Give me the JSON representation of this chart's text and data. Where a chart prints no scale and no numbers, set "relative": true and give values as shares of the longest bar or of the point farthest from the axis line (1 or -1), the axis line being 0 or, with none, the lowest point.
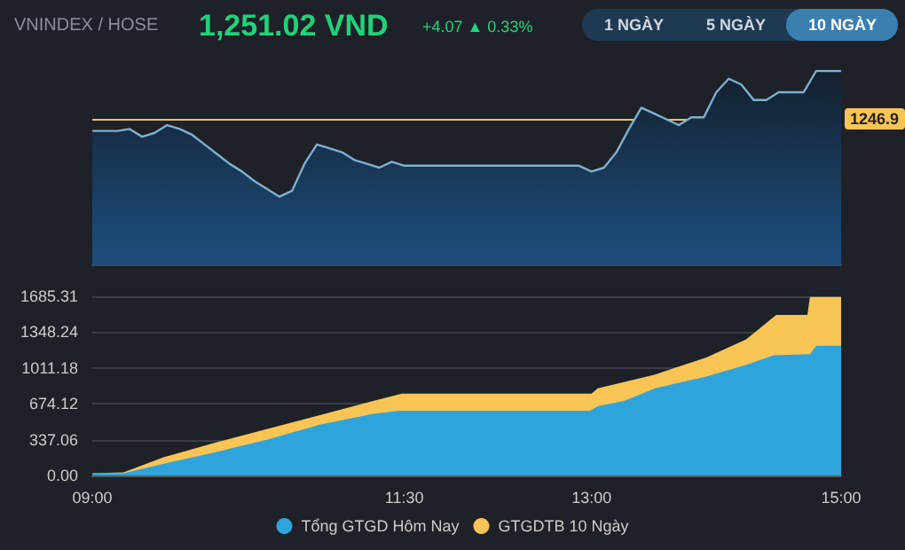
{
  "chart_data": [
    {
      "type": "area",
      "title": "VNINDEX / HOSE",
      "annotations": [
        "1,251.02 VND",
        "+4.07 ▲ 0.33%",
        "1 NGÀY",
        "5 NGÀY",
        "10 NGÀY",
        {
          "text": "1246.9",
          "y": 0.75
        }
      ],
      "relative": true,
      "grid": false,
      "legend": false,
      "marker": "none",
      "line_style": "solid",
      "categories": [
        null,
        null,
        null,
        null,
        null,
        null,
        null,
        null,
        null,
        null,
        null,
        null,
        null,
        null,
        null,
        null,
        null,
        null,
        null,
        null,
        null,
        null,
        null,
        null,
        null,
        null,
        null,
        null,
        null,
        null,
        null,
        null,
        null,
        null,
        null,
        null,
        null,
        null,
        null,
        null,
        null,
        null,
        null,
        null,
        null,
        null,
        null,
        null,
        null,
        null,
        null,
        null,
        null,
        null,
        null,
        null,
        null,
        null,
        null,
        null,
        null
      ],
      "ref_lines": [
        {
          "axis": "y",
          "value": 0.75,
          "color": "#e6c36a"
        }
      ],
      "series": [
        {
          "color": "#7fb0d0",
          "values": [
            0.69,
            0.69,
            0.69,
            0.7,
            0.66,
            0.68,
            0.72,
            0.7,
            0.67,
            0.62,
            0.57,
            0.52,
            0.48,
            0.43,
            0.39,
            0.35,
            0.38,
            0.52,
            0.62,
            0.6,
            0.58,
            0.54,
            0.52,
            0.5,
            0.53,
            0.51,
            0.51,
            0.51,
            0.51,
            0.51,
            0.51,
            0.51,
            0.51,
            0.51,
            0.51,
            0.51,
            0.51,
            0.51,
            0.51,
            0.51,
            0.48,
            0.5,
            0.58,
            0.7,
            0.81,
            0.78,
            0.75,
            0.72,
            0.76,
            0.76,
            0.89,
            0.96,
            0.93,
            0.85,
            0.85,
            0.89,
            0.89,
            0.89,
            1,
            1,
            1
          ]
        }
      ]
    },
    {
      "type": "area",
      "xlim": [
        9,
        15
      ],
      "xticks": [
        {
          "value": 9,
          "label": "09:00"
        },
        {
          "value": 11.5,
          "label": "11:30"
        },
        {
          "value": 13,
          "label": "13:00"
        },
        {
          "value": 15,
          "label": "15:00"
        }
      ],
      "ylim": [
        0,
        1685.31
      ],
      "yticks": [
        {
          "value": 0,
          "label": "0.00"
        },
        337.06,
        674.12,
        1011.18,
        1348.24,
        1685.31
      ],
      "grid": "y",
      "legend": "bottom",
      "marker": "none",
      "series": [
        {
          "name": "Tổng GTGD Hôm Nay",
          "color": "#2fa4dc",
          "x": [
            9.0,
            9.25,
            9.57,
            9.99,
            10.41,
            10.83,
            11.25,
            11.46,
            12.99,
            13.05,
            13.26,
            13.51,
            13.92,
            14.24,
            14.46,
            14.75,
            14.8,
            15.0
          ],
          "values": [
            20,
            20,
            110,
            220,
            340,
            480,
            580,
            610,
            610,
            650,
            700,
            820,
            930,
            1040,
            1130,
            1140,
            1220,
            1220
          ]
        },
        {
          "name": "GTGDTB 10 Ngày",
          "color": "#f8c555",
          "x": [
            9.0,
            9.25,
            9.57,
            9.99,
            10.41,
            10.83,
            11.25,
            11.48,
            13.0,
            13.05,
            13.51,
            13.92,
            14.24,
            14.48,
            14.73,
            14.75,
            15.0
          ],
          "values": [
            20,
            30,
            170,
            310,
            440,
            570,
            700,
            770,
            770,
            820,
            950,
            1110,
            1280,
            1510,
            1510,
            1680,
            1680
          ]
        }
      ]
    }
  ]
}
